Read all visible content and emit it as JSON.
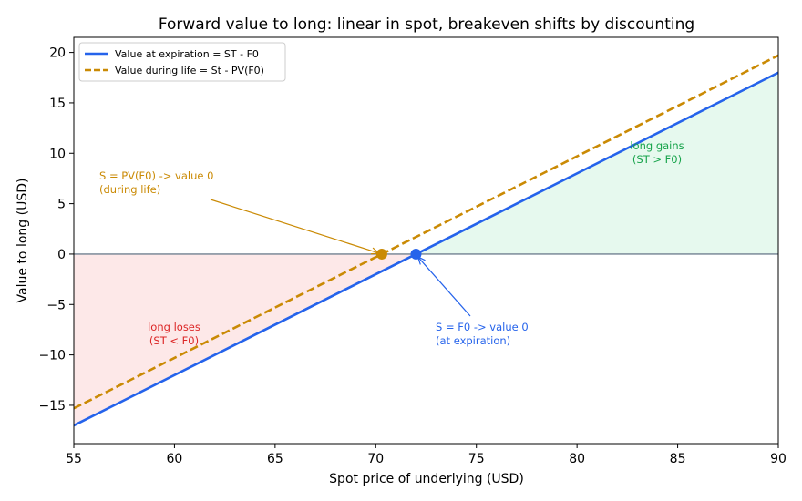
{
  "chart_data": {
    "type": "line",
    "title": "Forward value to long: linear in spot, breakeven shifts by discounting",
    "xlabel": "Spot price of underlying (USD)",
    "ylabel": "Value to long (USD)",
    "xlim": [
      55,
      90
    ],
    "ylim": [
      -18.8,
      21.5
    ],
    "xticks": [
      55,
      60,
      65,
      70,
      75,
      80,
      85,
      90
    ],
    "yticks": [
      -15,
      -10,
      -5,
      0,
      5,
      10,
      15,
      20
    ],
    "grid": false,
    "legend_position": "upper-left",
    "forward_price": 72,
    "pv_forward_price": 70.3,
    "series": [
      {
        "name": "Value at expiration = ST - F0",
        "color": "#2563eb",
        "style": "solid",
        "x": [
          55,
          90
        ],
        "y": [
          -17,
          18
        ]
      },
      {
        "name": "Value during life = St - PV(F0)",
        "color": "#ca8a04",
        "style": "dashed",
        "x": [
          55,
          90
        ],
        "y": [
          -15.3,
          19.7
        ]
      }
    ],
    "markers": [
      {
        "x": 72,
        "y": 0,
        "color": "#2563eb"
      },
      {
        "x": 70.3,
        "y": 0,
        "color": "#ca8a04"
      }
    ],
    "regions": [
      {
        "label": "loss",
        "color": "#fde8e8"
      },
      {
        "label": "gain",
        "color": "#e6f9ee"
      }
    ],
    "annotations": [
      {
        "id": "pv",
        "lines": [
          "S = PV(F0) -> value 0",
          "(during life)"
        ],
        "color": "#ca8a04"
      },
      {
        "id": "f0",
        "lines": [
          "S = F0 -> value 0",
          "(at expiration)"
        ],
        "color": "#2563eb"
      },
      {
        "id": "gains",
        "lines": [
          "long gains",
          "(ST > F0)"
        ],
        "color": "#16a34a"
      },
      {
        "id": "loses",
        "lines": [
          "long loses",
          "(ST < F0)"
        ],
        "color": "#dc2626"
      }
    ],
    "zero_line_color": "#708090"
  }
}
